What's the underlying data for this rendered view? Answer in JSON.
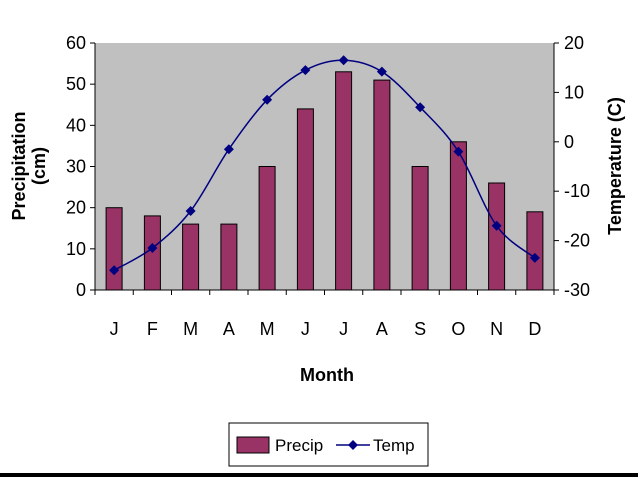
{
  "chart_data": {
    "type": "bar+line",
    "categories": [
      "J",
      "F",
      "M",
      "A",
      "M",
      "J",
      "J",
      "A",
      "S",
      "O",
      "N",
      "D"
    ],
    "series": [
      {
        "name": "Precip",
        "type": "bar",
        "axis": "left",
        "color": "#993366",
        "values": [
          20,
          18,
          16,
          16,
          30,
          44,
          53,
          51,
          30,
          36,
          26,
          19
        ]
      },
      {
        "name": "Temp",
        "type": "line",
        "axis": "right",
        "color": "#000080",
        "marker": "diamond",
        "values": [
          -26,
          -21.5,
          -14,
          -1.5,
          8.5,
          14.5,
          16.5,
          14.2,
          7,
          -2,
          -17,
          -23.5
        ]
      }
    ],
    "xlabel": "Month",
    "ylabel_left_line1": "Precipitation",
    "ylabel_left_line2": "(cm)",
    "ylabel_right": "Temperature (C)",
    "ylim_left": [
      0,
      60
    ],
    "yticks_left": [
      "0",
      "10",
      "20",
      "30",
      "40",
      "50",
      "60"
    ],
    "ylim_right": [
      -30,
      20
    ],
    "yticks_right": [
      "-30",
      "-20",
      "-10",
      "0",
      "10",
      "20"
    ],
    "plot_background": "#c0c0c0",
    "grid": false,
    "legend_position": "bottom-center"
  }
}
